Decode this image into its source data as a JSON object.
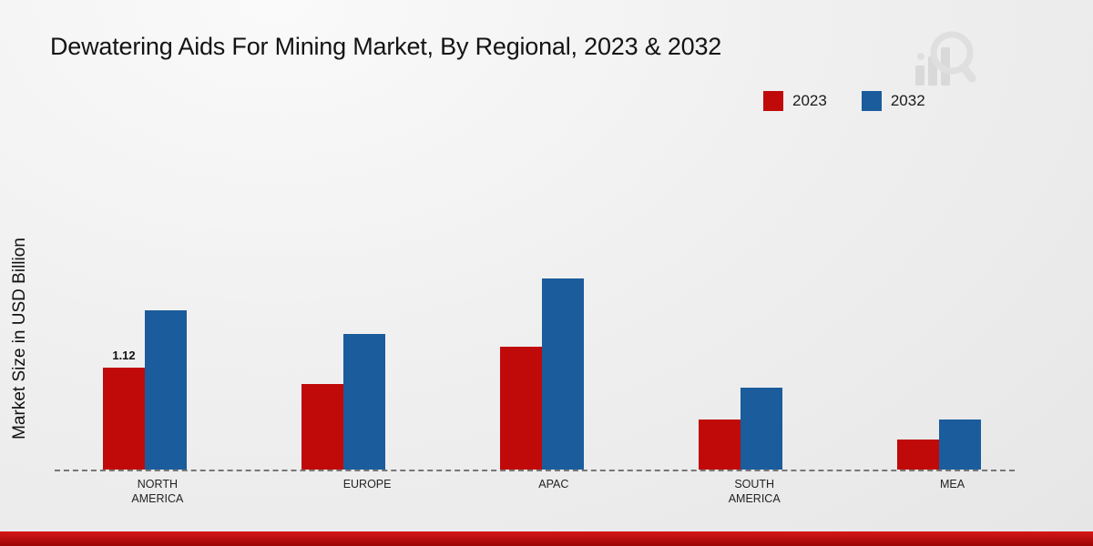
{
  "page": {
    "title": "Dewatering Aids For Mining Market, By Regional, 2023 & 2032",
    "ylabel": "Market Size in USD Billion"
  },
  "colors": {
    "series_2023": "#c00a0a",
    "series_2032": "#1b5c9c",
    "footer_top": "#d61818",
    "footer_bottom": "#9c0505",
    "logo_gray": "#c9c9c9"
  },
  "legend": [
    {
      "label": "2023",
      "color": "#c00a0a"
    },
    {
      "label": "2032",
      "color": "#1b5c9c"
    }
  ],
  "chart_data": {
    "type": "bar",
    "title": "Dewatering Aids For Mining Market, By Regional, 2023 & 2032",
    "xlabel": "",
    "ylabel": "Market Size in USD Billion",
    "categories": [
      "NORTH AMERICA",
      "EUROPE",
      "APAC",
      "SOUTH AMERICA",
      "MEA"
    ],
    "series": [
      {
        "name": "2023",
        "color": "#c00a0a",
        "values": [
          1.12,
          0.94,
          1.35,
          0.55,
          0.33
        ]
      },
      {
        "name": "2032",
        "color": "#1b5c9c",
        "values": [
          1.75,
          1.49,
          2.1,
          0.9,
          0.55
        ]
      }
    ],
    "data_labels": [
      {
        "series_index": 0,
        "category_index": 0,
        "text": "1.12"
      }
    ],
    "ylim": [
      0,
      2.5
    ],
    "grid": false,
    "legend_position": "top-right",
    "baseline_style": "dashed"
  }
}
